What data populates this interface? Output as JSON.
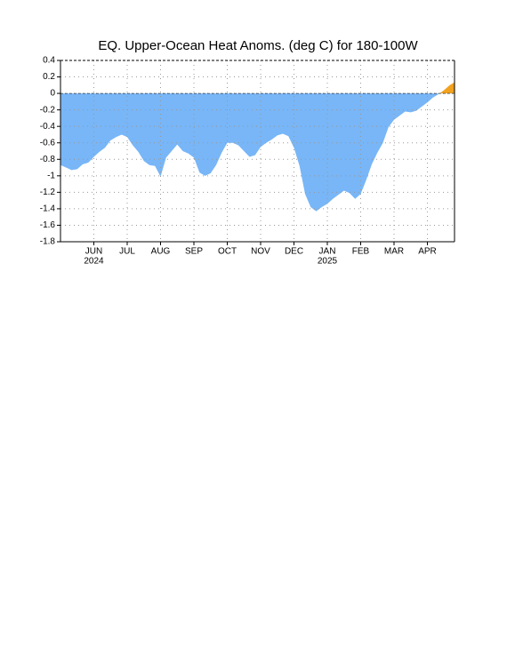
{
  "chart_data": {
    "type": "area",
    "title": "EQ. Upper-Ocean Heat Anoms. (deg C) for 180-100W",
    "categories": [
      null,
      null,
      null,
      null,
      null,
      null,
      "JUN",
      null,
      null,
      null,
      null,
      null,
      "JUL",
      null,
      null,
      null,
      null,
      null,
      "AUG",
      null,
      null,
      null,
      null,
      null,
      "SEP",
      null,
      null,
      null,
      null,
      null,
      "OCT",
      null,
      null,
      null,
      null,
      null,
      "NOV",
      null,
      null,
      null,
      null,
      null,
      "DEC",
      null,
      null,
      null,
      null,
      null,
      "JAN",
      null,
      null,
      null,
      null,
      null,
      "FEB",
      null,
      null,
      null,
      null,
      null,
      "MAR",
      null,
      null,
      null,
      null,
      null,
      "APR",
      null,
      null,
      null,
      null,
      null
    ],
    "years": [
      null,
      null,
      null,
      null,
      null,
      null,
      "2024",
      null,
      null,
      null,
      null,
      null,
      null,
      null,
      null,
      null,
      null,
      null,
      null,
      null,
      null,
      null,
      null,
      null,
      null,
      null,
      null,
      null,
      null,
      null,
      null,
      null,
      null,
      null,
      null,
      null,
      null,
      null,
      null,
      null,
      null,
      null,
      null,
      null,
      null,
      null,
      null,
      null,
      "2025",
      null,
      null,
      null,
      null,
      null,
      null,
      null,
      null,
      null,
      null,
      null,
      null,
      null,
      null,
      null,
      null,
      null,
      null,
      null,
      null,
      null,
      null,
      null
    ],
    "values": [
      -0.87,
      -0.9,
      -0.93,
      -0.92,
      -0.86,
      -0.84,
      -0.77,
      -0.71,
      -0.66,
      -0.57,
      -0.53,
      -0.5,
      -0.53,
      -0.63,
      -0.71,
      -0.82,
      -0.87,
      -0.88,
      -1.01,
      -0.78,
      -0.7,
      -0.62,
      -0.7,
      -0.73,
      -0.78,
      -0.96,
      -1.0,
      -0.97,
      -0.87,
      -0.72,
      -0.6,
      -0.6,
      -0.63,
      -0.7,
      -0.77,
      -0.75,
      -0.65,
      -0.6,
      -0.56,
      -0.51,
      -0.49,
      -0.52,
      -0.66,
      -0.88,
      -1.22,
      -1.38,
      -1.43,
      -1.38,
      -1.34,
      -1.28,
      -1.23,
      -1.18,
      -1.21,
      -1.28,
      -1.22,
      -1.05,
      -0.86,
      -0.72,
      -0.6,
      -0.41,
      -0.32,
      -0.27,
      -0.22,
      -0.23,
      -0.21,
      -0.16,
      -0.11,
      -0.05,
      -0.01,
      0.04,
      0.1,
      0.14
    ],
    "negative_color": "#78b6f7",
    "positive_color": "#f2a21e",
    "ylim": [
      -1.8,
      0.4
    ],
    "yticks": [
      0.4,
      0.2,
      0,
      -0.2,
      -0.4,
      -0.6,
      -0.8,
      -1,
      -1.2,
      -1.4,
      -1.6,
      -1.8
    ],
    "grid": true
  }
}
